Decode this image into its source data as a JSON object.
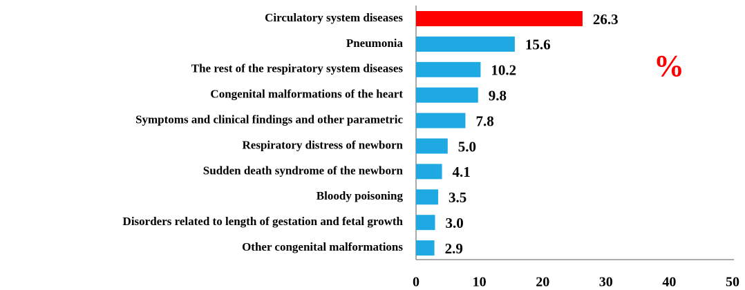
{
  "chart_data": {
    "type": "bar",
    "orientation": "horizontal",
    "annotation": "%",
    "categories": [
      "Circulatory system diseases",
      "Pneumonia",
      "The rest of the respiratory system diseases",
      "Congenital malformations of the heart",
      "Symptoms and clinical findings and other parametric",
      "Respiratory distress of newborn",
      "Sudden death syndrome of the newborn",
      "Bloody poisoning",
      "Disorders related to length of gestation and fetal growth",
      "Other congenital malformations"
    ],
    "values": [
      26.3,
      15.6,
      10.2,
      9.8,
      7.8,
      5.0,
      4.1,
      3.5,
      3.0,
      2.9
    ],
    "value_labels": [
      "26.3",
      "15.6",
      "10.2",
      "9.8",
      "7.8",
      "5.0",
      "4.1",
      "3.5",
      "3.0",
      "2.9"
    ],
    "colors": [
      "#ff0000",
      "#1fa9e3",
      "#1fa9e3",
      "#1fa9e3",
      "#1fa9e3",
      "#1fa9e3",
      "#1fa9e3",
      "#1fa9e3",
      "#1fa9e3",
      "#1fa9e3"
    ],
    "xlim": [
      0,
      50
    ],
    "xticks": [
      0,
      10,
      20,
      30,
      40,
      50
    ],
    "grid": false
  }
}
